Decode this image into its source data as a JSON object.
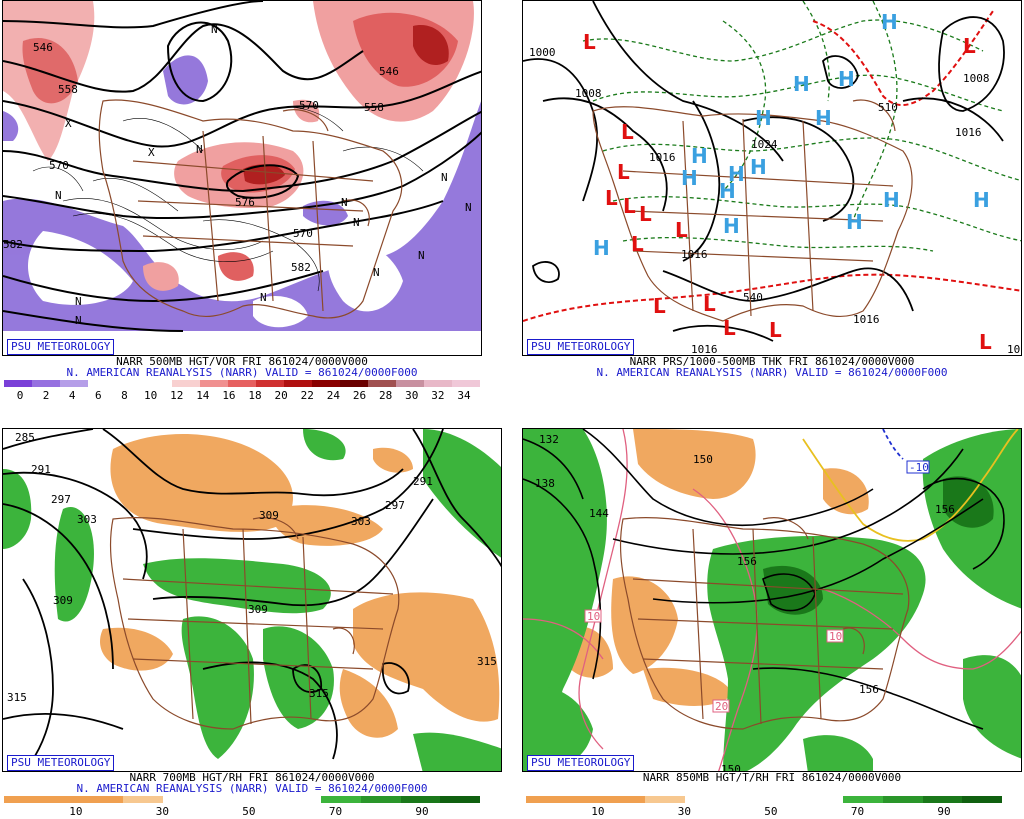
{
  "credit": "PSU METEOROLOGY",
  "panels": [
    {
      "id": "p1",
      "line1": "NARR 500MB HGT/VOR FRI 861024/0000V000",
      "line2": "N. AMERICAN REANALYSIS (NARR) VALID = 861024/0000F000",
      "contour_labels": [
        "546",
        "558",
        "570",
        "576",
        "570",
        "558",
        "546",
        "582",
        "582",
        "570"
      ],
      "markers": [
        "N",
        "N",
        "X",
        "X",
        "N",
        "N",
        "N",
        "N",
        "N",
        "N",
        "N",
        "N",
        "N",
        "N"
      ],
      "colorbar": {
        "colors": [
          "#7a40d8",
          "#9670e0",
          "#b59ee8",
          "#ffffff",
          "#ffffff",
          "#ffffff",
          "#f8d0d0",
          "#f09090",
          "#e66060",
          "#d03030",
          "#b01010",
          "#8a0000",
          "#6a0000",
          "#a05050",
          "#c890a0",
          "#e8b8c8",
          "#f0c8d8"
        ],
        "labels": [
          "0",
          "2",
          "4",
          "6",
          "8",
          "10",
          "12",
          "14",
          "16",
          "18",
          "20",
          "22",
          "24",
          "26",
          "28",
          "30",
          "32",
          "34"
        ]
      }
    },
    {
      "id": "p2",
      "line1": "NARR PRS/1000-500MB THK FRI 861024/0000V000",
      "line2": "N. AMERICAN REANALYSIS (NARR) VALID = 861024/0000F000",
      "contour_labels": [
        "1000",
        "1008",
        "1016",
        "1024",
        "1008",
        "1016",
        "1016",
        "1016",
        "1016",
        "510",
        "540",
        "10"
      ],
      "highs": [
        "H",
        "H",
        "H",
        "H",
        "H",
        "H",
        "H",
        "H",
        "H",
        "H",
        "H",
        "H",
        "H",
        "H",
        "H"
      ],
      "lows": [
        "L",
        "L",
        "L",
        "L",
        "L",
        "L",
        "L",
        "L",
        "L",
        "L",
        "L",
        "L",
        "L",
        "L"
      ]
    },
    {
      "id": "p3",
      "line1": "NARR 700MB HGT/RH FRI 861024/0000V000",
      "line2": "N. AMERICAN REANALYSIS (NARR) VALID = 861024/0000F000",
      "contour_labels": [
        "285",
        "291",
        "297",
        "303",
        "309",
        "309",
        "303",
        "297",
        "291",
        "309",
        "315",
        "315",
        "315"
      ],
      "colorbar": {
        "colors": [
          "#f0a050",
          "#f0a050",
          "#f0a050",
          "#f7c890",
          "#ffffff",
          "#ffffff",
          "#ffffff",
          "#ffffff",
          "#3cb43c",
          "#2a962a",
          "#1a781a",
          "#106010"
        ],
        "labels": [
          "10",
          "30",
          "50",
          "70",
          "90"
        ]
      }
    },
    {
      "id": "p4",
      "line1": "NARR 850MB HGT/T/RH FRI 861024/0000V000",
      "line2": "",
      "contour_labels": [
        "132",
        "138",
        "144",
        "150",
        "156",
        "156",
        "150",
        "156",
        "10",
        "10",
        "20",
        "-10"
      ],
      "colorbar": {
        "colors": [
          "#f0a050",
          "#f0a050",
          "#f0a050",
          "#f7c890",
          "#ffffff",
          "#ffffff",
          "#ffffff",
          "#ffffff",
          "#3cb43c",
          "#2a962a",
          "#1a781a",
          "#106010"
        ],
        "labels": [
          "10",
          "30",
          "50",
          "70",
          "90"
        ]
      }
    }
  ]
}
